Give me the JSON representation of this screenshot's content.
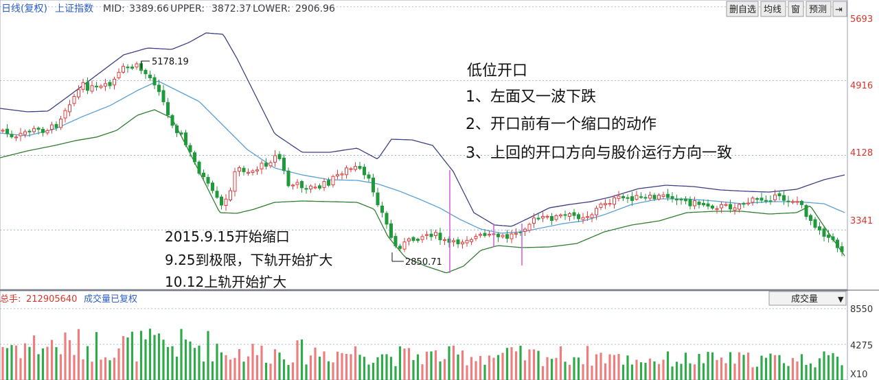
{
  "header": {
    "period": "日线(复权)",
    "index_name": "上证指数",
    "mid_label": "MID:",
    "mid_value": "3389.66",
    "upper_label": "UPPER:",
    "upper_value": "3872.37",
    "lower_label": "LOWER:",
    "lower_value": "2906.96"
  },
  "toolbar": {
    "buttons": [
      "删自选",
      "均线",
      "窗",
      "预测",
      "⇥"
    ]
  },
  "volume_header": {
    "total_label": "总手:",
    "total_value": "212905640",
    "caption": "成交量已复权",
    "dropdown_label": "成交量",
    "dropdown_arrow": "▼"
  },
  "notes": {
    "title": "低位开口",
    "items": [
      "1、左面又一波下跌",
      "2、开口前有一个缩口的动作",
      "3、上回的开口方向与股价运行方向一致"
    ],
    "dates": [
      "2015.9.15开始缩口",
      "9.25到极限，下轨开始扩大",
      "10.12上轨开始扩大"
    ]
  },
  "colors": {
    "up": "#e23b3b",
    "down": "#1f9a3a",
    "upper_band": "#3b3f86",
    "mid_band": "#5a9fd6",
    "lower_band": "#2f7d2f",
    "marker": "#d05bd6",
    "grid": "#8fa0c8",
    "axis_label": "#d9342b"
  },
  "chart_data": [
    {
      "type": "candlestick",
      "title": "上证指数",
      "y_ticks": [
        5693,
        4916,
        4128,
        3341
      ],
      "ylim": [
        2700,
        5750
      ],
      "annotations": [
        {
          "label": "5178.19",
          "value": 5178.19,
          "kind": "high"
        },
        {
          "label": "2850.71",
          "value": 2850.71,
          "kind": "low"
        }
      ],
      "series": [
        {
          "name": "UPPER",
          "last": 3872.37
        },
        {
          "name": "MID",
          "last": 3389.66
        },
        {
          "name": "LOWER",
          "last": 2906.96
        }
      ]
    },
    {
      "type": "bar",
      "title": "成交量",
      "y_ticks": [
        8550,
        4275
      ],
      "unit_label": "X10",
      "ylim": [
        0,
        9200
      ]
    }
  ]
}
